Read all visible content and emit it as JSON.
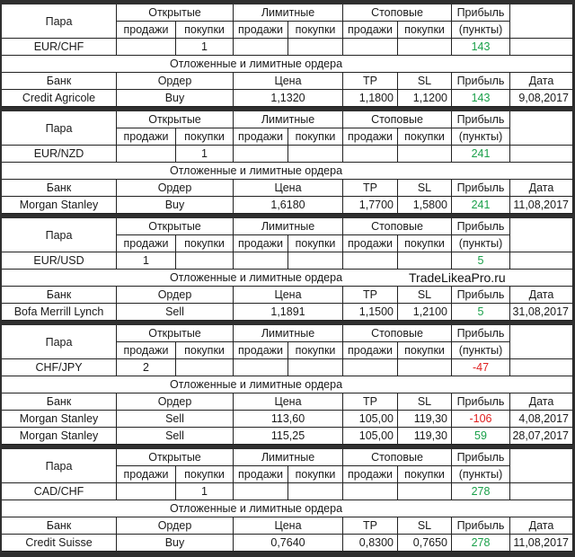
{
  "labels": {
    "pair": "Пара",
    "open": "Открытые",
    "limit": "Лимитные",
    "stop": "Стоповые",
    "profit": "Прибыль",
    "sell": "продажи",
    "buy": "покупки",
    "points": "(пункты)",
    "pending": "Отложенные и лимитные ордера",
    "bank": "Банк",
    "order": "Ордер",
    "price": "Цена",
    "tp": "TP",
    "sl": "SL",
    "date": "Дата"
  },
  "watermark": "TradeLikeaPro.ru",
  "blocks": [
    {
      "pair": "EUR/CHF",
      "open_sell": null,
      "open_buy": 1,
      "profit": 143,
      "orders": [
        {
          "bank": "Credit Agricole",
          "order": "Buy",
          "price": "1,1320",
          "tp": "1,1800",
          "sl": "1,1200",
          "profit": 143,
          "date": "9,08,2017"
        }
      ]
    },
    {
      "pair": "EUR/NZD",
      "open_sell": null,
      "open_buy": 1,
      "profit": 241,
      "orders": [
        {
          "bank": "Morgan Stanley",
          "order": "Buy",
          "price": "1,6180",
          "tp": "1,7700",
          "sl": "1,5800",
          "profit": 241,
          "date": "11,08,2017"
        }
      ]
    },
    {
      "pair": "EUR/USD",
      "open_sell": 1,
      "open_buy": null,
      "profit": 5,
      "orders": [
        {
          "bank": "Bofa Merrill Lynch",
          "order": "Sell",
          "price": "1,1891",
          "tp": "1,1500",
          "sl": "1,2100",
          "profit": 5,
          "date": "31,08,2017"
        }
      ]
    },
    {
      "pair": "CHF/JPY",
      "open_sell": 2,
      "open_buy": null,
      "profit": -47,
      "orders": [
        {
          "bank": "Morgan Stanley",
          "order": "Sell",
          "price": "113,60",
          "tp": "105,00",
          "sl": "119,30",
          "profit": -106,
          "date": "4,08,2017"
        },
        {
          "bank": "Morgan Stanley",
          "order": "Sell",
          "price": "115,25",
          "tp": "105,00",
          "sl": "119,30",
          "profit": 59,
          "date": "28,07,2017"
        }
      ]
    },
    {
      "pair": "CAD/CHF",
      "open_sell": null,
      "open_buy": 1,
      "profit": 278,
      "orders": [
        {
          "bank": "Credit Suisse",
          "order": "Buy",
          "price": "0,7640",
          "tp": "0,8300",
          "sl": "0,7650",
          "profit": 278,
          "date": "11,08,2017"
        }
      ]
    }
  ]
}
